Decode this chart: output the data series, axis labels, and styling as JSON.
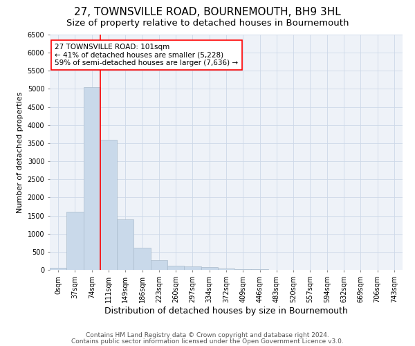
{
  "title": "27, TOWNSVILLE ROAD, BOURNEMOUTH, BH9 3HL",
  "subtitle": "Size of property relative to detached houses in Bournemouth",
  "xlabel": "Distribution of detached houses by size in Bournemouth",
  "ylabel": "Number of detached properties",
  "footer_line1": "Contains HM Land Registry data © Crown copyright and database right 2024.",
  "footer_line2": "Contains public sector information licensed under the Open Government Licence v3.0.",
  "categories": [
    "0sqm",
    "37sqm",
    "74sqm",
    "111sqm",
    "149sqm",
    "186sqm",
    "223sqm",
    "260sqm",
    "297sqm",
    "334sqm",
    "372sqm",
    "409sqm",
    "446sqm",
    "483sqm",
    "520sqm",
    "557sqm",
    "594sqm",
    "632sqm",
    "669sqm",
    "706sqm",
    "743sqm"
  ],
  "values": [
    50,
    1600,
    5050,
    3600,
    1400,
    620,
    270,
    120,
    100,
    70,
    40,
    10,
    10,
    0,
    0,
    0,
    0,
    0,
    0,
    0,
    0
  ],
  "bar_color": "#c9d9ea",
  "bar_edge_color": "#aabbcc",
  "property_line_x": 3.0,
  "annotation_text": "27 TOWNSVILLE ROAD: 101sqm\n← 41% of detached houses are smaller (5,228)\n59% of semi-detached houses are larger (7,636) →",
  "annotation_box_color": "white",
  "annotation_box_edge_color": "red",
  "vline_color": "red",
  "ylim": [
    0,
    6500
  ],
  "yticks": [
    0,
    500,
    1000,
    1500,
    2000,
    2500,
    3000,
    3500,
    4000,
    4500,
    5000,
    5500,
    6000,
    6500
  ],
  "grid_color": "#cdd8e8",
  "background_color": "#eef2f8",
  "title_fontsize": 11,
  "subtitle_fontsize": 9.5,
  "xlabel_fontsize": 9,
  "ylabel_fontsize": 8,
  "tick_fontsize": 7,
  "annotation_fontsize": 7.5,
  "footer_fontsize": 6.5
}
